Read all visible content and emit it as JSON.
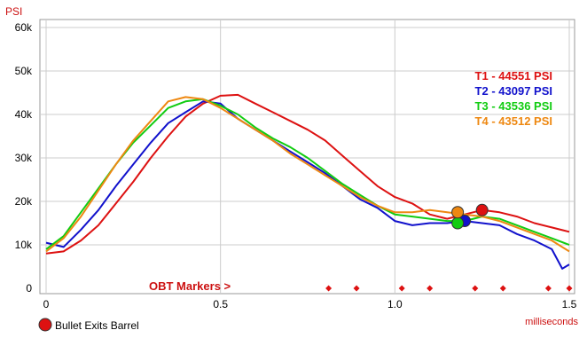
{
  "chart_data": {
    "type": "line",
    "ylabel": "PSI",
    "xlabel": "milliseconds",
    "xlim": [
      0,
      1.5
    ],
    "ylim": [
      0,
      60000
    ],
    "x_ticks": [
      {
        "value": 0,
        "label": "0"
      },
      {
        "value": 0.5,
        "label": "0.5"
      },
      {
        "value": 1.0,
        "label": "1.0"
      },
      {
        "value": 1.5,
        "label": "1.5"
      }
    ],
    "y_ticks": [
      {
        "value": 0,
        "label": "0"
      },
      {
        "value": 10000,
        "label": "10k"
      },
      {
        "value": 20000,
        "label": "20k"
      },
      {
        "value": 30000,
        "label": "30k"
      },
      {
        "value": 40000,
        "label": "40k"
      },
      {
        "value": 50000,
        "label": "50k"
      },
      {
        "value": 60000,
        "label": "60k"
      }
    ],
    "grid": true,
    "legend_placement": "right",
    "series": [
      {
        "name": "T1",
        "legend_label": "T1 - 44551 PSI",
        "color": "#dd1111",
        "x": [
          0,
          0.05,
          0.1,
          0.15,
          0.2,
          0.25,
          0.3,
          0.35,
          0.4,
          0.45,
          0.5,
          0.55,
          0.6,
          0.65,
          0.7,
          0.75,
          0.8,
          0.85,
          0.9,
          0.95,
          1.0,
          1.05,
          1.1,
          1.15,
          1.2,
          1.25,
          1.3,
          1.35,
          1.4,
          1.45,
          1.5
        ],
        "values": [
          8000,
          8500,
          11000,
          14500,
          19500,
          24500,
          30000,
          35000,
          39500,
          42500,
          44300,
          44500,
          42500,
          40500,
          38500,
          36500,
          34000,
          30500,
          27000,
          23500,
          21000,
          19500,
          17000,
          16000,
          17000,
          18000,
          17500,
          16500,
          15000,
          14000,
          13000
        ],
        "marker": {
          "x": 1.25,
          "y": 18000
        }
      },
      {
        "name": "T2",
        "legend_label": "T2 - 43097 PSI",
        "color": "#1111cc",
        "x": [
          0,
          0.05,
          0.1,
          0.15,
          0.2,
          0.25,
          0.3,
          0.35,
          0.4,
          0.45,
          0.5,
          0.55,
          0.6,
          0.65,
          0.7,
          0.75,
          0.8,
          0.85,
          0.9,
          0.95,
          1.0,
          1.05,
          1.1,
          1.15,
          1.2,
          1.25,
          1.3,
          1.35,
          1.4,
          1.45,
          1.48,
          1.5
        ],
        "values": [
          10500,
          9500,
          13500,
          18000,
          23500,
          28500,
          33500,
          38000,
          40500,
          43000,
          42500,
          39000,
          36500,
          34000,
          31500,
          29000,
          26500,
          23500,
          20500,
          18500,
          15500,
          14500,
          15000,
          15000,
          15500,
          15000,
          14500,
          12500,
          11000,
          9000,
          4500,
          5500
        ],
        "marker": {
          "x": 1.2,
          "y": 15500
        }
      },
      {
        "name": "T3",
        "legend_label": "T3 - 43536 PSI",
        "color": "#11cc11",
        "x": [
          0,
          0.05,
          0.1,
          0.15,
          0.2,
          0.25,
          0.3,
          0.35,
          0.4,
          0.45,
          0.5,
          0.55,
          0.6,
          0.65,
          0.7,
          0.75,
          0.8,
          0.85,
          0.9,
          0.95,
          1.0,
          1.05,
          1.1,
          1.15,
          1.2,
          1.25,
          1.3,
          1.35,
          1.4,
          1.45,
          1.5
        ],
        "values": [
          9000,
          12000,
          17500,
          23000,
          28500,
          33500,
          37500,
          41500,
          43000,
          43500,
          42000,
          40000,
          37000,
          34500,
          32500,
          30000,
          27000,
          24000,
          21500,
          19000,
          17000,
          16500,
          16000,
          15500,
          15500,
          16500,
          16000,
          14500,
          13000,
          11500,
          10000
        ],
        "marker": {
          "x": 1.18,
          "y": 15000
        }
      },
      {
        "name": "T4",
        "legend_label": "T4 - 43512 PSI",
        "color": "#ee8811",
        "x": [
          0,
          0.05,
          0.1,
          0.15,
          0.2,
          0.25,
          0.3,
          0.35,
          0.4,
          0.45,
          0.5,
          0.55,
          0.6,
          0.65,
          0.7,
          0.75,
          0.8,
          0.85,
          0.9,
          0.95,
          1.0,
          1.05,
          1.1,
          1.15,
          1.2,
          1.25,
          1.3,
          1.35,
          1.4,
          1.45,
          1.5
        ],
        "values": [
          8500,
          11500,
          16500,
          22500,
          28500,
          34000,
          38500,
          43000,
          44000,
          43500,
          41500,
          39000,
          36500,
          34000,
          31000,
          28500,
          26000,
          23500,
          21000,
          19000,
          17500,
          17500,
          18000,
          17500,
          17000,
          16500,
          15500,
          14000,
          12500,
          11000,
          8500
        ],
        "marker": {
          "x": 1.18,
          "y": 17500
        }
      }
    ],
    "obt_markers": {
      "label": "OBT Markers >",
      "color": "#dd1111",
      "x": [
        0.81,
        0.89,
        1.02,
        1.1,
        1.23,
        1.31,
        1.44,
        1.5
      ]
    },
    "marker_legend": {
      "label": "Bullet Exits Barrel",
      "color": "#dd1111"
    }
  }
}
